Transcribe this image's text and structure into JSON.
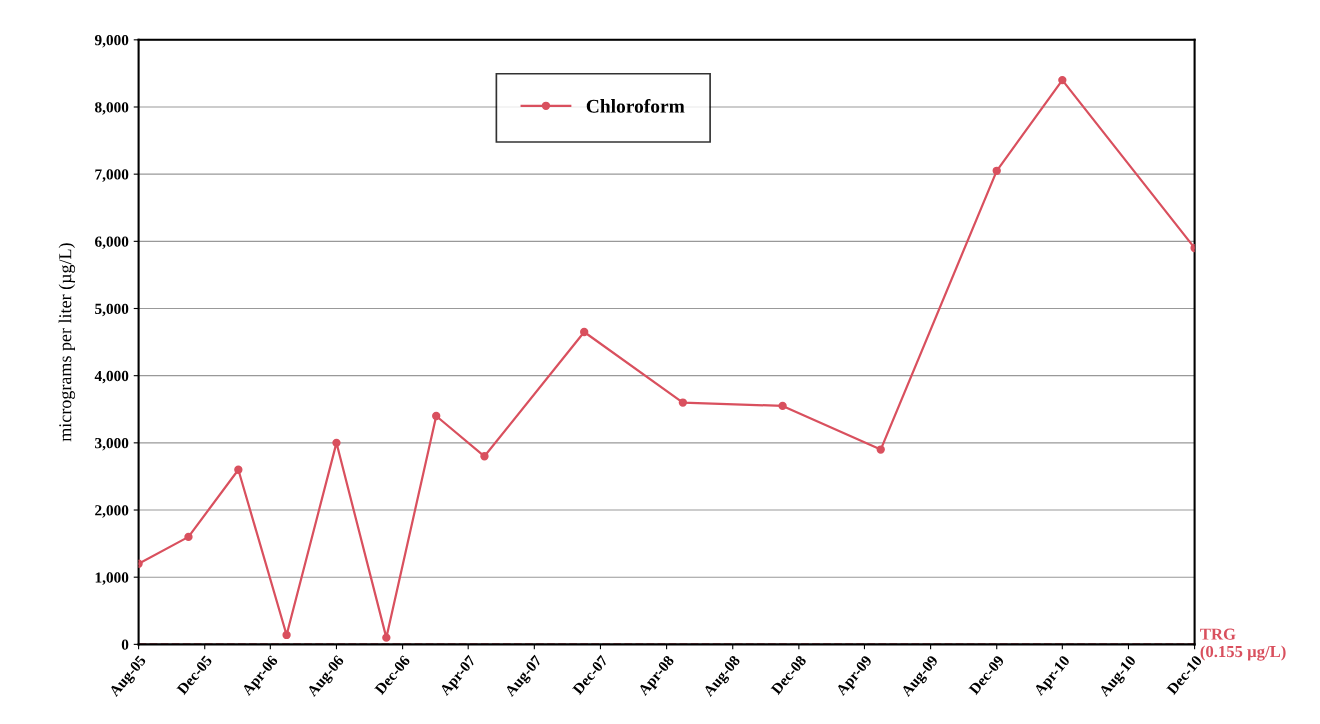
{
  "chart_data": {
    "type": "line",
    "ylabel": "micrograms per liter (µg/L)",
    "x": [
      "2005-08",
      "2005-11",
      "2006-02",
      "2006-05",
      "2006-08",
      "2006-11",
      "2007-02",
      "2007-05",
      "2007-11",
      "2008-05",
      "2008-11",
      "2009-05",
      "2009-12",
      "2010-04",
      "2010-12"
    ],
    "series": [
      {
        "name": "Chloroform",
        "color": "#d9505e",
        "values": [
          1200,
          1600,
          2600,
          140,
          3000,
          100,
          3400,
          2800,
          4650,
          3600,
          3550,
          2900,
          7050,
          8400,
          5900
        ]
      }
    ],
    "xlim": [
      "2005-08",
      "2010-12"
    ],
    "xticks": [
      {
        "value": "2005-08",
        "label": "Aug-05"
      },
      {
        "value": "2005-12",
        "label": "Dec-05"
      },
      {
        "value": "2006-04",
        "label": "Apr-06"
      },
      {
        "value": "2006-08",
        "label": "Aug-06"
      },
      {
        "value": "2006-12",
        "label": "Dec-06"
      },
      {
        "value": "2007-04",
        "label": "Apr-07"
      },
      {
        "value": "2007-08",
        "label": "Aug-07"
      },
      {
        "value": "2007-12",
        "label": "Dec-07"
      },
      {
        "value": "2008-04",
        "label": "Apr-08"
      },
      {
        "value": "2008-08",
        "label": "Aug-08"
      },
      {
        "value": "2008-12",
        "label": "Dec-08"
      },
      {
        "value": "2009-04",
        "label": "Apr-09"
      },
      {
        "value": "2009-08",
        "label": "Aug-09"
      },
      {
        "value": "2009-12",
        "label": "Dec-09"
      },
      {
        "value": "2010-04",
        "label": "Apr-10"
      },
      {
        "value": "2010-08",
        "label": "Aug-10"
      },
      {
        "value": "2010-12",
        "label": "Dec-10"
      }
    ],
    "ylim": [
      0,
      9000
    ],
    "yticks": [
      {
        "value": 0,
        "label": "0"
      },
      {
        "value": 1000,
        "label": "1,000"
      },
      {
        "value": 2000,
        "label": "2,000"
      },
      {
        "value": 3000,
        "label": "3,000"
      },
      {
        "value": 4000,
        "label": "4,000"
      },
      {
        "value": 5000,
        "label": "5,000"
      },
      {
        "value": 6000,
        "label": "6,000"
      },
      {
        "value": 7000,
        "label": "7,000"
      },
      {
        "value": 8000,
        "label": "8,000"
      },
      {
        "value": 9000,
        "label": "9,000"
      }
    ],
    "ref_lines": [
      {
        "axis": "y",
        "value": 0.155,
        "label": "TRG\n(0.155 µg/L)",
        "color": "#d9505e",
        "line_style": "dashed"
      }
    ],
    "grid": "y",
    "legend": "top",
    "marker": "circle",
    "line_style": "solid"
  }
}
